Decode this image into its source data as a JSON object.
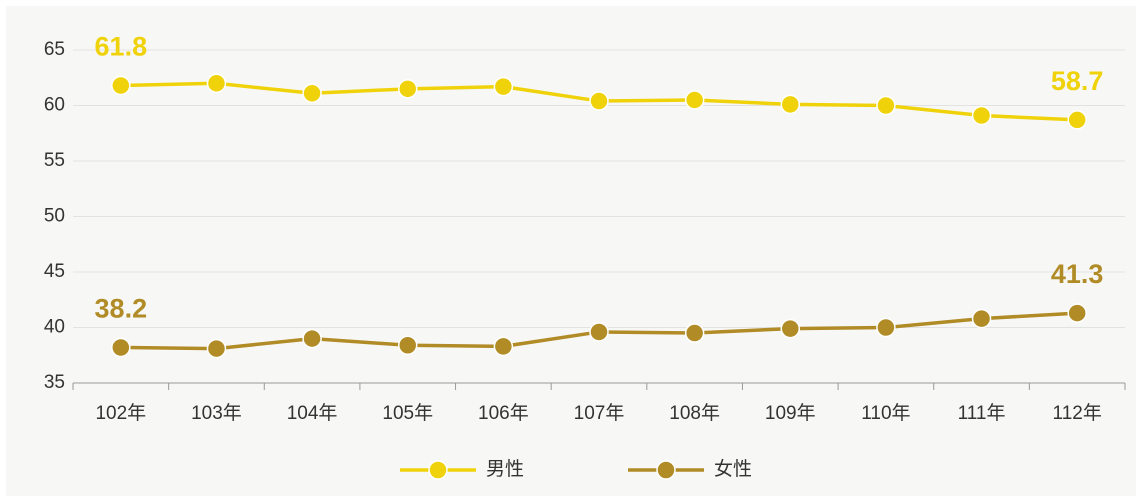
{
  "chart_data": {
    "type": "line",
    "categories": [
      "102年",
      "103年",
      "104年",
      "105年",
      "106年",
      "107年",
      "108年",
      "109年",
      "110年",
      "111年",
      "112年"
    ],
    "series": [
      {
        "name": "男性",
        "color": "#f0d20a",
        "values": [
          61.8,
          62.0,
          61.1,
          61.5,
          61.7,
          60.4,
          60.5,
          60.1,
          60.0,
          59.1,
          58.7
        ]
      },
      {
        "name": "女性",
        "color": "#b08b26",
        "values": [
          38.2,
          38.1,
          39.0,
          38.4,
          38.3,
          39.6,
          39.5,
          39.9,
          40.0,
          40.8,
          41.3
        ]
      }
    ],
    "ylim": [
      35,
      65
    ],
    "yticks": [
      35,
      40,
      45,
      50,
      55,
      60,
      65
    ],
    "grid": true,
    "data_labels": "ends",
    "legend": "bottom"
  }
}
